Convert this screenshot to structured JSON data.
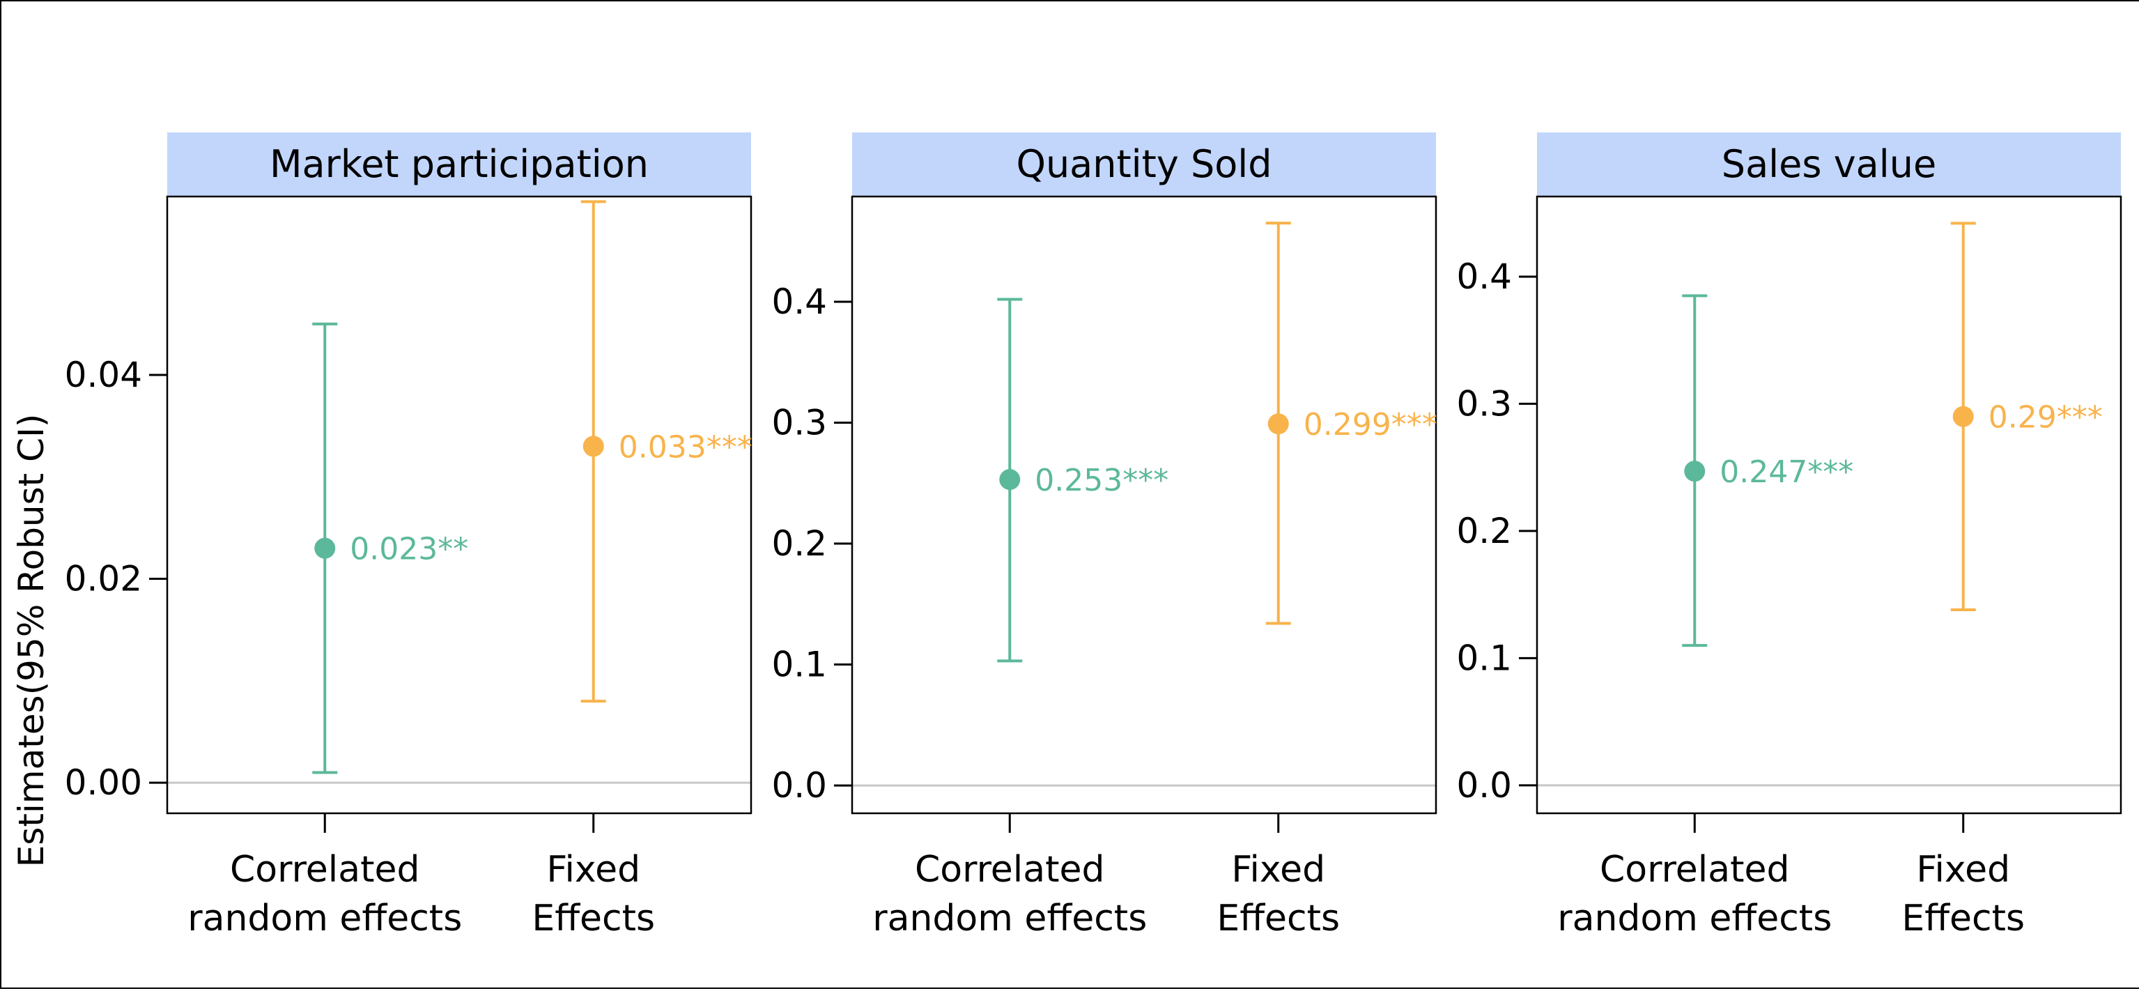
{
  "chart_data": {
    "type": "errorbar",
    "ylabel": "Estimates(95% Robust CI)",
    "grid": false,
    "legend": "none",
    "categories": [
      [
        "Correlated",
        "random effects"
      ],
      [
        "Fixed",
        "Effects"
      ]
    ],
    "colors": {
      "cre": "#5cb89b",
      "fe": "#f8b34b",
      "strip_bg": "#c2d6fb",
      "zero_line": "#c8c8c8"
    },
    "panels": [
      {
        "title": "Market participation",
        "ylim": [
          -0.003,
          0.0575
        ],
        "ticks": [
          0.0,
          0.02,
          0.04
        ],
        "tick_labels": [
          "0.00",
          "0.02",
          "0.04"
        ],
        "points": [
          {
            "category": "Correlated random effects",
            "estimate": 0.023,
            "lower": 0.001,
            "upper": 0.045,
            "label": "0.023**",
            "color": "#5cb89b"
          },
          {
            "category": "Fixed Effects",
            "estimate": 0.033,
            "lower": 0.008,
            "upper": 0.057,
            "label": "0.033***",
            "color": "#f8b34b"
          }
        ]
      },
      {
        "title": "Quantity Sold",
        "ylim": [
          -0.023,
          0.487
        ],
        "ticks": [
          0.0,
          0.1,
          0.2,
          0.3,
          0.4
        ],
        "tick_labels": [
          "0.0",
          "0.1",
          "0.2",
          "0.3",
          "0.4"
        ],
        "points": [
          {
            "category": "Correlated random effects",
            "estimate": 0.253,
            "lower": 0.103,
            "upper": 0.402,
            "label": "0.253***",
            "color": "#5cb89b"
          },
          {
            "category": "Fixed Effects",
            "estimate": 0.299,
            "lower": 0.134,
            "upper": 0.465,
            "label": "0.299***",
            "color": "#f8b34b"
          }
        ]
      },
      {
        "title": "Sales value",
        "ylim": [
          -0.022,
          0.463
        ],
        "ticks": [
          0.0,
          0.1,
          0.2,
          0.3,
          0.4
        ],
        "tick_labels": [
          "0.0",
          "0.1",
          "0.2",
          "0.3",
          "0.4"
        ],
        "points": [
          {
            "category": "Correlated random effects",
            "estimate": 0.247,
            "lower": 0.11,
            "upper": 0.385,
            "label": "0.247***",
            "color": "#5cb89b"
          },
          {
            "category": "Fixed Effects",
            "estimate": 0.29,
            "lower": 0.138,
            "upper": 0.442,
            "label": "0.29***",
            "color": "#f8b34b"
          }
        ]
      }
    ]
  }
}
